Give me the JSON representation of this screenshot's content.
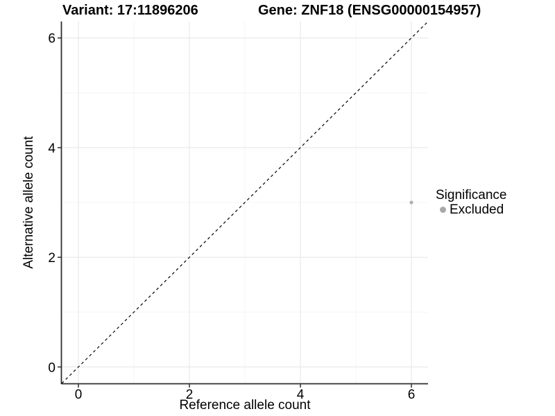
{
  "chart_data": {
    "type": "scatter",
    "titles": {
      "variant": "Variant: 17:11896206",
      "gene": "Gene: ZNF18 (ENSG00000154957)"
    },
    "xlabel": "Reference allele count",
    "ylabel": "Alternative allele count",
    "xlim": [
      -0.3,
      6.3
    ],
    "ylim": [
      -0.3,
      6.3
    ],
    "xticks": [
      0,
      2,
      4,
      6
    ],
    "yticks": [
      0,
      2,
      4,
      6
    ],
    "minor_xticks": [
      1,
      3,
      5
    ],
    "minor_yticks": [
      1,
      3,
      5
    ],
    "grid": "major and minor, very light gray on white",
    "reference_line": {
      "type": "identity",
      "slope": 1,
      "intercept": 0,
      "style": "dashed",
      "color": "#000000"
    },
    "series": [
      {
        "name": "Excluded",
        "color": "#b0b0b0",
        "points": [
          [
            6,
            3
          ]
        ]
      }
    ],
    "legend": {
      "title": "Significance",
      "position": "right",
      "items": [
        {
          "label": "Excluded",
          "color": "#a8a8a8"
        }
      ]
    }
  },
  "colors": {
    "axis": "#2e2e2e",
    "grid_major": "#e9e9e9",
    "grid_minor": "#f4f4f4",
    "background": "#ffffff",
    "text": "#000000"
  }
}
